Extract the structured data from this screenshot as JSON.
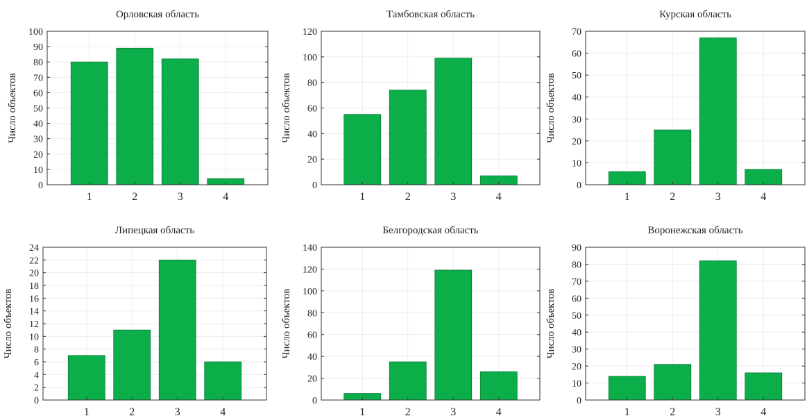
{
  "chart_data": [
    {
      "type": "bar",
      "title": "Орловская область",
      "ylabel": "Число объектов",
      "categories": [
        "1",
        "2",
        "3",
        "4"
      ],
      "values": [
        80,
        89,
        82,
        4
      ],
      "ylim": [
        0,
        100
      ],
      "yticks": [
        0,
        10,
        20,
        30,
        40,
        50,
        60,
        70,
        80,
        90,
        100
      ],
      "bar_color": "#0cae4a",
      "grid": true
    },
    {
      "type": "bar",
      "title": "Тамбовская область",
      "ylabel": "Число объектов",
      "categories": [
        "1",
        "2",
        "3",
        "4"
      ],
      "values": [
        55,
        74,
        99,
        7
      ],
      "ylim": [
        0,
        120
      ],
      "yticks": [
        0,
        20,
        40,
        60,
        80,
        100,
        120
      ],
      "bar_color": "#0cae4a",
      "grid": true
    },
    {
      "type": "bar",
      "title": "Курская область",
      "ylabel": "Число объектов",
      "categories": [
        "1",
        "2",
        "3",
        "4"
      ],
      "values": [
        6,
        25,
        67,
        7
      ],
      "ylim": [
        0,
        70
      ],
      "yticks": [
        0,
        10,
        20,
        30,
        40,
        50,
        60,
        70
      ],
      "bar_color": "#0cae4a",
      "grid": true
    },
    {
      "type": "bar",
      "title": "Липецкая область",
      "ylabel": "Число объектов",
      "categories": [
        "1",
        "2",
        "3",
        "4"
      ],
      "values": [
        7,
        11,
        22,
        6
      ],
      "ylim": [
        0,
        24
      ],
      "yticks": [
        0,
        2,
        4,
        6,
        8,
        10,
        12,
        14,
        16,
        18,
        20,
        22,
        24
      ],
      "bar_color": "#0cae4a",
      "grid": true
    },
    {
      "type": "bar",
      "title": "Белгородская область",
      "ylabel": "Число объектов",
      "categories": [
        "1",
        "2",
        "3",
        "4"
      ],
      "values": [
        6,
        35,
        119,
        26
      ],
      "ylim": [
        0,
        140
      ],
      "yticks": [
        0,
        20,
        40,
        60,
        80,
        100,
        120,
        140
      ],
      "bar_color": "#0cae4a",
      "grid": true
    },
    {
      "type": "bar",
      "title": "Воронежская область",
      "ylabel": "Число объектов",
      "categories": [
        "1",
        "2",
        "3",
        "4"
      ],
      "values": [
        14,
        21,
        82,
        16
      ],
      "ylim": [
        0,
        90
      ],
      "yticks": [
        0,
        10,
        20,
        30,
        40,
        50,
        60,
        70,
        80,
        90
      ],
      "bar_color": "#0cae4a",
      "grid": true
    }
  ]
}
